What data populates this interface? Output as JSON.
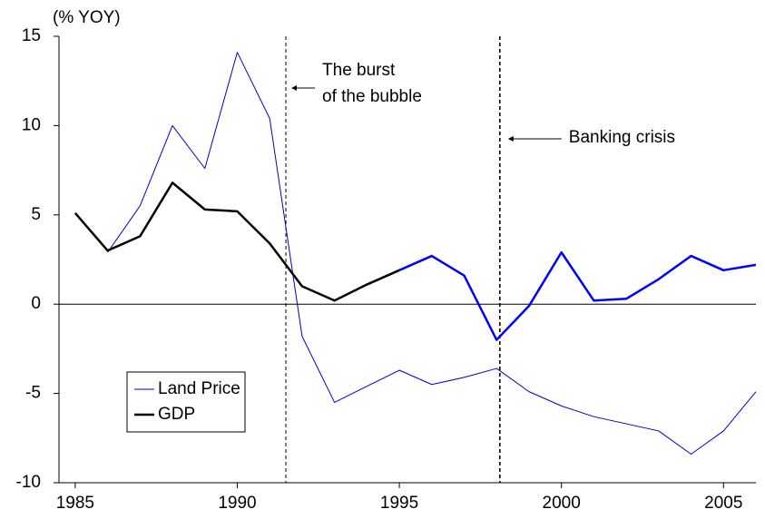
{
  "chart_data": {
    "type": "line",
    "y_label": "(% YOY)",
    "x": [
      1985,
      1986,
      1987,
      1988,
      1989,
      1990,
      1991,
      1992,
      1993,
      1994,
      1995,
      1996,
      1997,
      1998,
      1999,
      2000,
      2001,
      2002,
      2003,
      2004,
      2005,
      2006
    ],
    "series": [
      {
        "name": "Land Price",
        "color": "#0000cc",
        "width": 1,
        "values": [
          null,
          2.9,
          5.5,
          10.0,
          7.6,
          14.1,
          10.4,
          -1.8,
          -5.5,
          -4.6,
          -3.7,
          -4.5,
          -4.1,
          -3.6,
          -4.9,
          -5.7,
          -6.3,
          -6.7,
          -7.1,
          -8.4,
          -7.1,
          -4.9
        ]
      },
      {
        "name": "GDP",
        "color": "#000000",
        "width": 2.5,
        "highlight": {
          "from": 1995,
          "color": "#0000ff"
        },
        "values": [
          5.1,
          3.0,
          3.8,
          6.8,
          5.3,
          5.2,
          3.4,
          1.0,
          0.2,
          1.1,
          1.9,
          2.7,
          1.6,
          -2.0,
          -0.1,
          2.9,
          0.2,
          0.3,
          1.4,
          2.7,
          1.9,
          2.2
        ]
      }
    ],
    "xlim": [
      1984.5,
      2006
    ],
    "xticks": [
      1985,
      1990,
      1995,
      2000,
      2005
    ],
    "ylim": [
      -10,
      15
    ],
    "yticks": [
      -10,
      -5,
      0,
      5,
      10,
      15
    ],
    "vlines": [
      1991.5,
      1998.1
    ],
    "annotations": [
      [
        "The burst",
        "of the bubble"
      ],
      [
        "Banking crisis"
      ]
    ],
    "legend": "lower left"
  }
}
